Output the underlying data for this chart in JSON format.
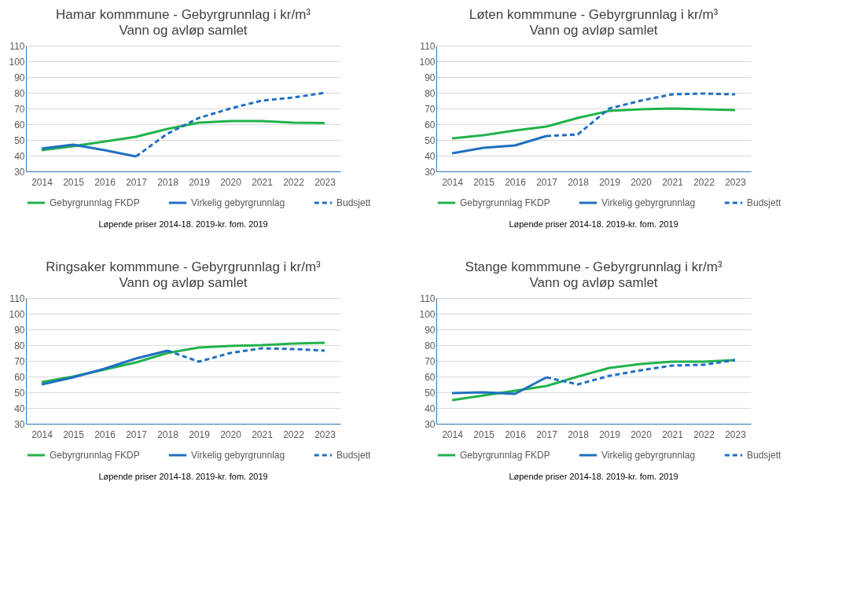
{
  "chart_data": [
    {
      "type": "line",
      "title": "Hamar kommmune - Gebyrgrunnlag i kr/m³",
      "subtitle": "Vann og avløp samlet",
      "categories": [
        "2014",
        "2015",
        "2016",
        "2017",
        "2018",
        "2019",
        "2020",
        "2021",
        "2022",
        "2023"
      ],
      "ylim": [
        30,
        110
      ],
      "yticks": [
        30,
        40,
        50,
        60,
        70,
        80,
        90,
        100,
        110
      ],
      "grid": "y",
      "legend": "bottom",
      "annotations": [
        "Løpende priser 2014-18. 2019-kr. fom. 2019"
      ],
      "series": [
        {
          "name": "Gebyrgrunnlag FKDP",
          "color": "#22b24c",
          "line_style": "solid",
          "values": [
            43.5,
            46,
            49,
            52,
            57,
            61,
            62,
            62,
            61,
            60.7
          ]
        },
        {
          "name": "Virkelig gebyrgrunnlag",
          "color": "#1f70c1",
          "line_style": "solid",
          "values": [
            44.5,
            47,
            43.5,
            39.5,
            null,
            null,
            null,
            null,
            null,
            null
          ]
        },
        {
          "name": "Budsjett",
          "color": "#1f70c1",
          "line_style": "dashed",
          "values": [
            null,
            null,
            null,
            39.5,
            54,
            64,
            70,
            75,
            77,
            80
          ]
        }
      ]
    },
    {
      "type": "line",
      "title": "Løten kommmune - Gebyrgrunnlag i kr/m³",
      "subtitle": "Vann og avløp samlet",
      "categories": [
        "2014",
        "2015",
        "2016",
        "2017",
        "2018",
        "2019",
        "2020",
        "2021",
        "2022",
        "2023"
      ],
      "ylim": [
        30,
        110
      ],
      "yticks": [
        30,
        40,
        50,
        60,
        70,
        80,
        90,
        100,
        110
      ],
      "grid": "y",
      "legend": "bottom",
      "annotations": [
        "Løpende priser 2014-18. 2019-kr. fom. 2019"
      ],
      "series": [
        {
          "name": "Gebyrgrunnlag FKDP",
          "color": "#22b24c",
          "line_style": "solid",
          "values": [
            51,
            53,
            56,
            58.5,
            64,
            68.5,
            69.5,
            70,
            69.5,
            69
          ]
        },
        {
          "name": "Virkelig gebyrgrunnlag",
          "color": "#1f70c1",
          "line_style": "solid",
          "values": [
            41.5,
            45,
            46.5,
            52.5,
            null,
            null,
            null,
            null,
            null,
            null
          ]
        },
        {
          "name": "Budsjett",
          "color": "#1f70c1",
          "line_style": "dashed",
          "values": [
            null,
            null,
            null,
            52.5,
            53.5,
            70,
            75,
            79,
            79.5,
            79
          ]
        }
      ]
    },
    {
      "type": "line",
      "title": "Ringsaker kommmune - Gebyrgrunnlag i kr/m³",
      "subtitle": "Vann og avløp samlet",
      "categories": [
        "2014",
        "2015",
        "2016",
        "2017",
        "2018",
        "2019",
        "2020",
        "2021",
        "2022",
        "2023"
      ],
      "ylim": [
        30,
        110
      ],
      "yticks": [
        30,
        40,
        50,
        60,
        70,
        80,
        90,
        100,
        110
      ],
      "grid": "y",
      "legend": "bottom",
      "annotations": [
        "Løpende priser 2014-18. 2019-kr. fom. 2019"
      ],
      "series": [
        {
          "name": "Gebyrgrunnlag FKDP",
          "color": "#22b24c",
          "line_style": "solid",
          "values": [
            56.5,
            60,
            64.5,
            69,
            75,
            78.5,
            79.5,
            80,
            81,
            81.5
          ]
        },
        {
          "name": "Virkelig gebyrgrunnlag",
          "color": "#1f70c1",
          "line_style": "solid",
          "values": [
            55,
            59.5,
            65,
            71.5,
            76.5,
            null,
            null,
            null,
            null,
            null
          ]
        },
        {
          "name": "Budsjett",
          "color": "#1f70c1",
          "line_style": "dashed",
          "values": [
            null,
            null,
            null,
            null,
            76.5,
            69.5,
            75,
            78,
            77.5,
            76.5
          ]
        }
      ]
    },
    {
      "type": "line",
      "title": "Stange kommmune - Gebyrgrunnlag i kr/m³",
      "subtitle": "Vann og avløp samlet",
      "categories": [
        "2014",
        "2015",
        "2016",
        "2017",
        "2018",
        "2019",
        "2020",
        "2021",
        "2022",
        "2023"
      ],
      "ylim": [
        30,
        110
      ],
      "yticks": [
        30,
        40,
        50,
        60,
        70,
        80,
        90,
        100,
        110
      ],
      "grid": "y",
      "legend": "bottom",
      "annotations": [
        "Løpende priser 2014-18. 2019-kr. fom. 2019"
      ],
      "series": [
        {
          "name": "Gebyrgrunnlag FKDP",
          "color": "#22b24c",
          "line_style": "solid",
          "values": [
            45,
            48,
            51,
            54,
            60,
            65.5,
            68,
            69.5,
            69.5,
            70.5
          ]
        },
        {
          "name": "Virkelig gebyrgrunnlag",
          "color": "#1f70c1",
          "line_style": "solid",
          "values": [
            49.5,
            50,
            49,
            59.5,
            null,
            null,
            null,
            null,
            null,
            null
          ]
        },
        {
          "name": "Budsjett",
          "color": "#1f70c1",
          "line_style": "dashed",
          "values": [
            null,
            null,
            null,
            59.5,
            55,
            60.5,
            64,
            67,
            67.5,
            70.5
          ]
        }
      ]
    }
  ]
}
